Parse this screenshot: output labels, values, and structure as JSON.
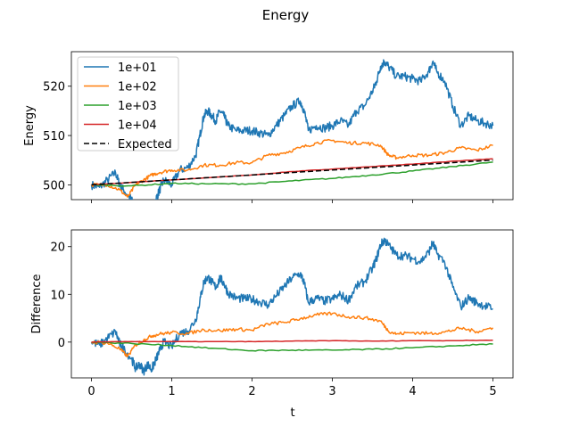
{
  "chart_data": {
    "type": "line",
    "title": "Energy",
    "xlabel": "t",
    "colors": {
      "1e+01": "#1f77b4",
      "1e+02": "#ff7f0e",
      "1e+03": "#2ca02c",
      "1e+04": "#d62728",
      "Expected": "#000000"
    },
    "x_ticks": [
      "0",
      "1",
      "2",
      "3",
      "4",
      "5"
    ],
    "xlim": [
      -0.25,
      5.25
    ],
    "panels": [
      {
        "ylabel": "Energy",
        "ylim": [
          497,
          527
        ],
        "y_ticks": [
          500,
          510,
          520
        ],
        "legend_position": "upper-left",
        "series": [
          {
            "name": "1e+01",
            "x": [
              0,
              0.1,
              0.2,
              0.3,
              0.35,
              0.4,
              0.5,
              0.55,
              0.6,
              0.65,
              0.7,
              0.75,
              0.8,
              0.85,
              0.9,
              1.0,
              1.1,
              1.2,
              1.3,
              1.35,
              1.4,
              1.45,
              1.5,
              1.55,
              1.6,
              1.65,
              1.7,
              1.8,
              1.9,
              2.0,
              2.1,
              2.2,
              2.3,
              2.4,
              2.5,
              2.6,
              2.65,
              2.7,
              2.8,
              2.9,
              3.0,
              3.1,
              3.2,
              3.3,
              3.4,
              3.5,
              3.55,
              3.6,
              3.65,
              3.7,
              3.8,
              3.9,
              4.0,
              4.1,
              4.2,
              4.25,
              4.3,
              4.4,
              4.5,
              4.6,
              4.7,
              4.8,
              4.9,
              5.0
            ],
            "y": [
              500,
              499.5,
              501,
              502.5,
              500,
              499,
              497,
              495,
              496,
              494.5,
              496,
              495,
              497,
              499,
              501,
              500,
              503,
              503.5,
              506,
              510,
              514,
              515,
              514,
              513,
              515,
              514,
              512,
              511,
              511,
              511,
              510.5,
              510,
              512,
              514,
              516,
              517,
              515,
              511,
              512,
              511.5,
              512,
              513,
              512,
              515,
              516,
              519,
              521,
              524,
              525,
              524,
              522,
              522,
              521.5,
              521,
              523,
              525,
              523,
              521,
              516,
              512,
              514,
              513,
              512.5,
              512
            ]
          },
          {
            "name": "1e+02",
            "x": [
              0,
              0.2,
              0.35,
              0.45,
              0.55,
              0.65,
              0.75,
              0.85,
              1.0,
              1.2,
              1.4,
              1.6,
              1.8,
              2.0,
              2.2,
              2.4,
              2.6,
              2.8,
              3.0,
              3.2,
              3.4,
              3.6,
              3.7,
              3.8,
              4.0,
              4.2,
              4.4,
              4.6,
              4.8,
              5.0
            ],
            "y": [
              500,
              500,
              499,
              497.5,
              500,
              501,
              502,
              502.5,
              503,
              503,
              504,
              504,
              504.5,
              504.5,
              506,
              506.5,
              507.5,
              508.5,
              509,
              508.5,
              508.5,
              508,
              506,
              505.5,
              506,
              506,
              506.5,
              507.5,
              507,
              508
            ]
          },
          {
            "name": "1e+03",
            "x": [
              0,
              0.5,
              1.0,
              1.5,
              2.0,
              2.5,
              3.0,
              3.5,
              4.0,
              4.5,
              5.0
            ],
            "y": [
              500,
              499.8,
              500.3,
              500.2,
              500.2,
              500.8,
              501.3,
              502,
              502.8,
              503.7,
              504.6
            ]
          },
          {
            "name": "1e+04",
            "x": [
              0,
              0.5,
              1.0,
              1.5,
              2.0,
              2.5,
              3.0,
              3.5,
              4.0,
              4.5,
              5.0
            ],
            "y": [
              500,
              500.5,
              501,
              501.5,
              502,
              502.7,
              503.2,
              503.7,
              504.2,
              504.8,
              505.3
            ]
          },
          {
            "name": "Expected",
            "dashed": true,
            "x": [
              0,
              5
            ],
            "y": [
              500,
              505
            ]
          }
        ]
      },
      {
        "ylabel": "Difference",
        "ylim": [
          -7.5,
          23.5
        ],
        "y_ticks": [
          0,
          10,
          20
        ],
        "series": [
          {
            "name": "1e+01",
            "x": [
              0,
              0.1,
              0.2,
              0.3,
              0.35,
              0.4,
              0.5,
              0.55,
              0.6,
              0.65,
              0.7,
              0.75,
              0.8,
              0.85,
              0.9,
              1.0,
              1.1,
              1.2,
              1.3,
              1.35,
              1.4,
              1.45,
              1.5,
              1.55,
              1.6,
              1.65,
              1.7,
              1.8,
              1.9,
              2.0,
              2.1,
              2.2,
              2.3,
              2.4,
              2.5,
              2.6,
              2.65,
              2.7,
              2.8,
              2.9,
              3.0,
              3.1,
              3.2,
              3.3,
              3.4,
              3.5,
              3.55,
              3.6,
              3.65,
              3.7,
              3.8,
              3.9,
              4.0,
              4.1,
              4.2,
              4.25,
              4.3,
              4.4,
              4.5,
              4.6,
              4.7,
              4.8,
              4.9,
              5.0
            ],
            "y": [
              0,
              -0.6,
              0.8,
              2.2,
              -0.3,
              -1.4,
              -3.5,
              -5.5,
              -4.6,
              -6.1,
              -4.7,
              -5.7,
              -3.8,
              -1.8,
              0.1,
              -1.0,
              1.9,
              2.3,
              4.7,
              8.7,
              12.6,
              13.6,
              12.5,
              11.5,
              13.4,
              12.3,
              10.3,
              9.2,
              9.1,
              9,
              8.4,
              7.8,
              9.7,
              11.6,
              13.5,
              14.4,
              12.4,
              8.3,
              9.2,
              8.6,
              9,
              9.9,
              8.8,
              11.7,
              12.6,
              15.5,
              17.5,
              20.4,
              21.4,
              20.3,
              18.2,
              18.1,
              17.5,
              16.9,
              18.8,
              20.8,
              18.7,
              16.6,
              11.5,
              7.4,
              9.3,
              8.2,
              7.6,
              7
            ]
          },
          {
            "name": "1e+02",
            "x": [
              0,
              0.2,
              0.35,
              0.45,
              0.55,
              0.65,
              0.75,
              0.85,
              1.0,
              1.2,
              1.4,
              1.6,
              1.8,
              2.0,
              2.2,
              2.4,
              2.6,
              2.8,
              3.0,
              3.2,
              3.4,
              3.6,
              3.7,
              3.8,
              4.0,
              4.2,
              4.4,
              4.6,
              4.8,
              5.0
            ],
            "y": [
              0,
              -0.2,
              -1.4,
              -3,
              -0.6,
              0.4,
              1.3,
              1.7,
              2,
              1.8,
              2.6,
              2.4,
              2.7,
              2.5,
              3.8,
              4.1,
              4.9,
              5.7,
              6,
              5.3,
              5.1,
              4.4,
              2.3,
              1.7,
              2,
              1.8,
              2.1,
              2.9,
              2.2,
              3
            ]
          },
          {
            "name": "1e+03",
            "x": [
              0,
              0.5,
              1.0,
              1.5,
              2.0,
              2.5,
              3.0,
              3.5,
              4.0,
              4.5,
              5.0
            ],
            "y": [
              0,
              -0.3,
              -0.7,
              -1.3,
              -1.8,
              -1.7,
              -1.7,
              -1.5,
              -1.2,
              -0.8,
              -0.4
            ]
          },
          {
            "name": "1e+04",
            "x": [
              0,
              0.5,
              1.0,
              1.5,
              2.0,
              2.5,
              3.0,
              3.5,
              4.0,
              4.5,
              5.0
            ],
            "y": [
              0,
              0.1,
              0.1,
              0.1,
              0.1,
              0.2,
              0.3,
              0.2,
              0.3,
              0.3,
              0.4
            ]
          }
        ]
      }
    ]
  }
}
